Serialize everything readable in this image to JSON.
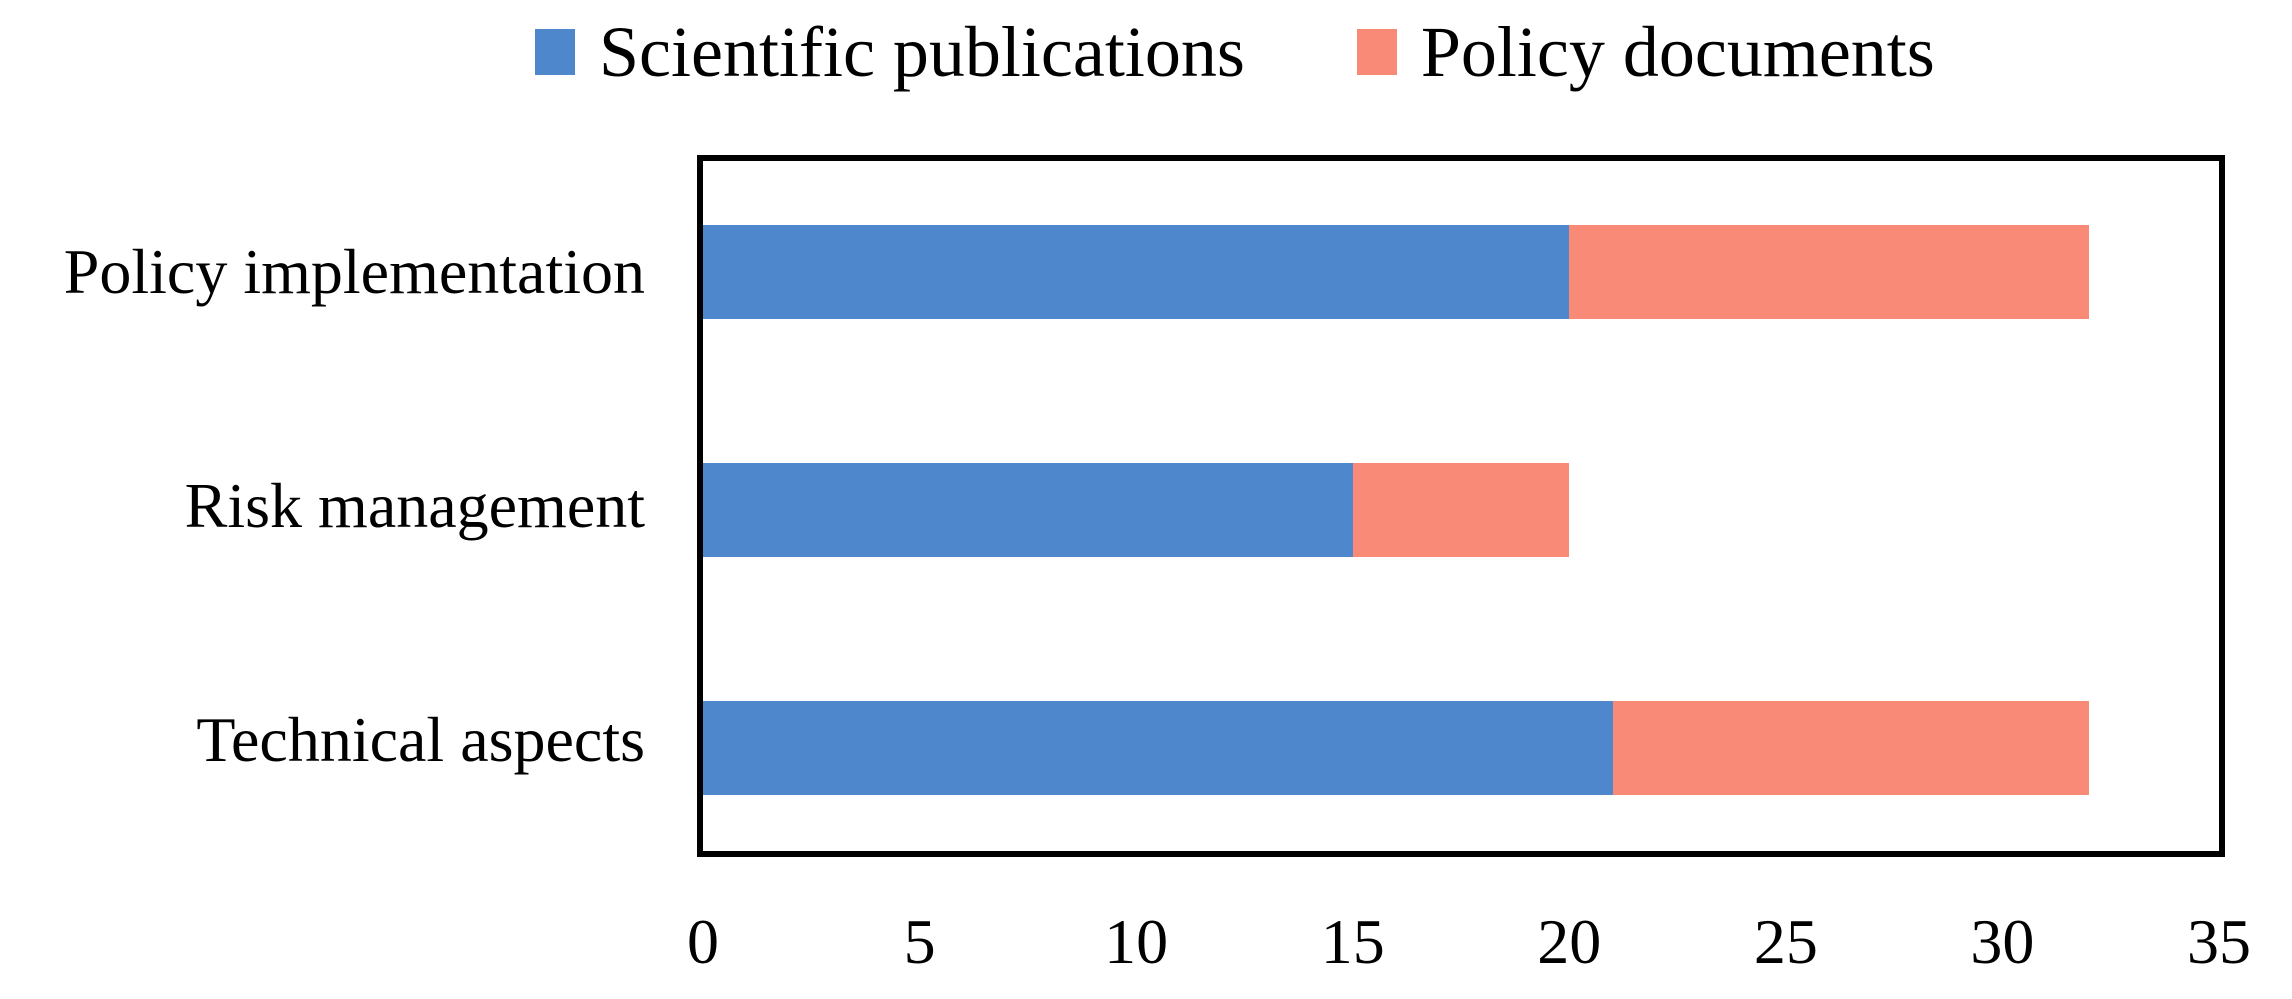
{
  "figure": {
    "background": "#FFFFFF",
    "text_color": "#000000"
  },
  "legend": {
    "position": "top",
    "items": [
      {
        "label": "Scientific publications",
        "color": "#4E87CB"
      },
      {
        "label": "Policy documents",
        "color": "#FA8A78"
      }
    ]
  },
  "chart_data": {
    "type": "bar",
    "orientation": "horizontal",
    "stacked": true,
    "title": "",
    "xlabel": "",
    "ylabel": "",
    "categories": [
      "Policy implementation",
      "Risk management",
      "Technical aspects"
    ],
    "series": [
      {
        "name": "Scientific publications",
        "color": "#4E87CB",
        "values": [
          20,
          15,
          21
        ]
      },
      {
        "name": "Policy documents",
        "color": "#FA8A78",
        "values": [
          12,
          5,
          11
        ]
      }
    ],
    "stacked_totals": [
      32,
      20,
      32
    ],
    "xlim": [
      0,
      35
    ],
    "x_ticks": [
      "0",
      "5",
      "10",
      "15",
      "20",
      "25",
      "30",
      "35"
    ],
    "tick_step": 5,
    "grid": false,
    "legend_position": "top",
    "plot_border_color": "#000000"
  }
}
